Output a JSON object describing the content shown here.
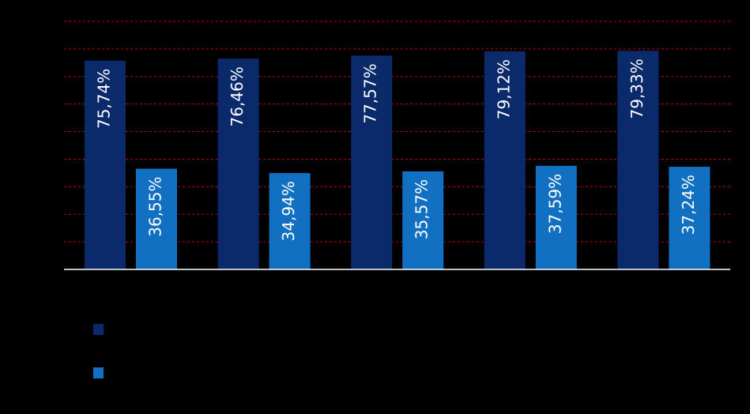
{
  "chart_data": {
    "type": "bar",
    "categories": [
      null,
      null,
      null,
      null,
      null
    ],
    "series": [
      {
        "color": "#0b2a6b",
        "values": [
          75.74,
          76.46,
          77.57,
          79.12,
          79.33
        ],
        "value_labels": [
          "75,74%",
          "76,46%",
          "77,57%",
          "79,12%",
          "79,33%"
        ]
      },
      {
        "color": "#1270c2",
        "values": [
          36.55,
          34.94,
          35.57,
          37.59,
          37.24
        ],
        "value_labels": [
          "36,55%",
          "34,94%",
          "35,57%",
          "37,59%",
          "37,24%"
        ]
      }
    ],
    "ylim": [
      0,
      90
    ],
    "yticks": [
      0,
      10,
      20,
      30,
      40,
      50,
      60,
      70,
      80,
      90
    ],
    "grid": true,
    "grid_color": "#c00000"
  }
}
